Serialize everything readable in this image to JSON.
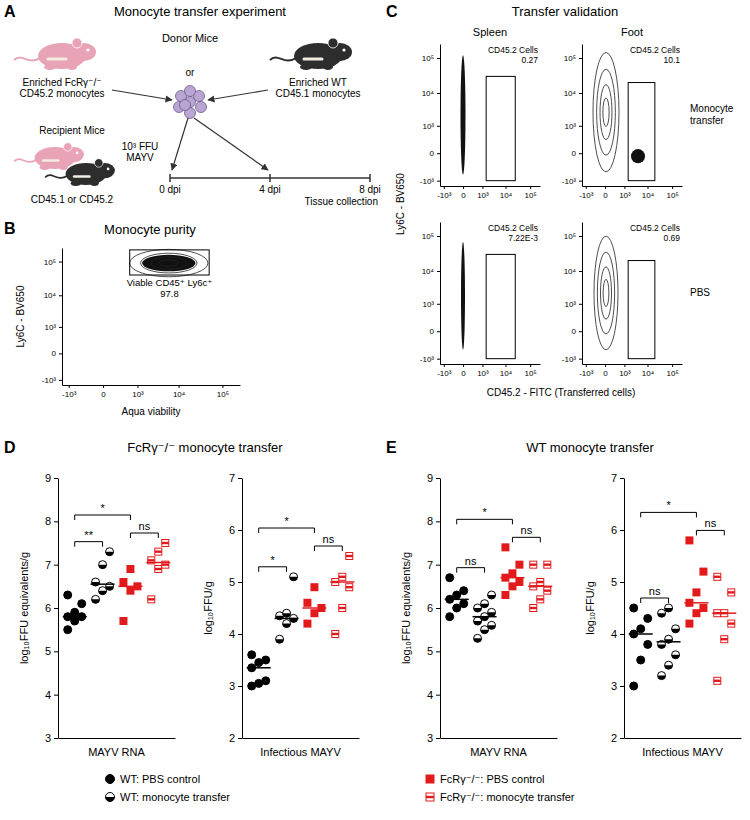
{
  "panels": {
    "A": {
      "letter": "A",
      "title": "Monocyte transfer experiment",
      "donor": "Donor Mice",
      "donor_fcr": [
        "Enriched FcRγ⁻/⁻",
        "CD45.2 monocytes"
      ],
      "donor_wt": [
        "Enriched WT",
        "CD45.1 monocytes"
      ],
      "or": "or",
      "recipient": "Recipient Mice",
      "recipient_type": "CD45.1 or CD45.2",
      "inoculum": [
        "10³ FFU",
        "MAYV"
      ],
      "timeline": [
        "0 dpi",
        "4 dpi",
        "8 dpi"
      ],
      "collection": "Tissue collection"
    },
    "B": {
      "letter": "B",
      "title": "Monocyte purity"
    },
    "C": {
      "letter": "C",
      "title": "Transfer validation",
      "columns": [
        "Spleen",
        "Foot"
      ],
      "rows": [
        "Monocyte transfer",
        "PBS"
      ],
      "x_label": "CD45.2 - FITC (Transferred cells)",
      "y_label": "Ly6C - BV650"
    },
    "D": {
      "letter": "D",
      "title": "FcRγ⁻/⁻ monocyte transfer"
    },
    "E": {
      "letter": "E",
      "title": "WT monocyte transfer"
    }
  },
  "chart_data": [
    {
      "type": "flow",
      "x_label": "Aqua viability",
      "y_label": "Ly6C - BV650",
      "log": true,
      "xlim": [
        -1500,
        250000
      ],
      "ylim": [
        -1500,
        250000
      ],
      "xticks": [
        {
          "value": -1000,
          "label": "-10³"
        },
        0,
        {
          "value": 1000,
          "label": "10³"
        },
        {
          "value": 10000,
          "label": "10⁴"
        },
        {
          "value": 100000,
          "label": "10⁵"
        }
      ],
      "yticks": [
        {
          "value": -1000,
          "label": "-10³"
        },
        0,
        {
          "value": 1000,
          "label": "10³"
        },
        {
          "value": 10000,
          "label": "10⁴"
        },
        {
          "value": 100000,
          "label": "10⁵"
        }
      ],
      "gates": [
        {
          "label": "Viable CD45⁺ Ly6c⁺",
          "value": 97.8,
          "x": [
            600,
            50000
          ],
          "y": [
            40000,
            220000
          ]
        }
      ]
    },
    {
      "type": "flow",
      "log": true,
      "xlim": [
        -1500,
        250000
      ],
      "ylim": [
        -1500,
        250000
      ],
      "xticks": [
        {
          "value": -1000,
          "label": "-10³"
        },
        0,
        {
          "value": 1000,
          "label": "10³"
        },
        {
          "value": 10000,
          "label": "10⁴"
        },
        {
          "value": 100000,
          "label": "10⁵"
        }
      ],
      "yticks": [
        {
          "value": -1000,
          "label": "-10³"
        },
        0,
        {
          "value": 1000,
          "label": "10³"
        },
        {
          "value": 10000,
          "label": "10⁴"
        },
        {
          "value": 100000,
          "label": "10⁵"
        }
      ],
      "gates": [
        {
          "label": "CD45.2 Cells",
          "value": 0.27,
          "x": [
            1500,
            25000
          ],
          "y": [
            -1000,
            30000
          ]
        }
      ]
    },
    {
      "type": "flow",
      "log": true,
      "xlim": [
        -1500,
        250000
      ],
      "ylim": [
        -1500,
        250000
      ],
      "xticks": [
        {
          "value": -1000,
          "label": "-10³"
        },
        0,
        {
          "value": 1000,
          "label": "10³"
        },
        {
          "value": 10000,
          "label": "10⁴"
        },
        {
          "value": 100000,
          "label": "10⁵"
        }
      ],
      "yticks": [
        {
          "value": -1000,
          "label": "-10³"
        },
        0,
        {
          "value": 1000,
          "label": "10³"
        },
        {
          "value": 10000,
          "label": "10⁴"
        },
        {
          "value": 100000,
          "label": "10⁵"
        }
      ],
      "gates": [
        {
          "label": "CD45.2 Cells",
          "value": 10.1,
          "x": [
            1500,
            20000
          ],
          "y": [
            -1000,
            20000
          ]
        }
      ]
    },
    {
      "type": "flow",
      "log": true,
      "xlim": [
        -1500,
        250000
      ],
      "ylim": [
        -1500,
        250000
      ],
      "xticks": [
        {
          "value": -1000,
          "label": "-10³"
        },
        0,
        {
          "value": 1000,
          "label": "10³"
        },
        {
          "value": 10000,
          "label": "10⁴"
        },
        {
          "value": 100000,
          "label": "10⁵"
        }
      ],
      "yticks": [
        {
          "value": -1000,
          "label": "-10³"
        },
        0,
        {
          "value": 1000,
          "label": "10³"
        },
        {
          "value": 10000,
          "label": "10⁴"
        },
        {
          "value": 100000,
          "label": "10⁵"
        }
      ],
      "gates": [
        {
          "label": "CD45.2 Cells",
          "value": 0.00722,
          "value_label": "7.22E-3",
          "x": [
            1500,
            25000
          ],
          "y": [
            -1000,
            30000
          ]
        }
      ]
    },
    {
      "type": "flow",
      "log": true,
      "xlim": [
        -1500,
        250000
      ],
      "ylim": [
        -1500,
        250000
      ],
      "xticks": [
        {
          "value": -1000,
          "label": "-10³"
        },
        0,
        {
          "value": 1000,
          "label": "10³"
        },
        {
          "value": 10000,
          "label": "10⁴"
        },
        {
          "value": 100000,
          "label": "10⁵"
        }
      ],
      "yticks": [
        {
          "value": -1000,
          "label": "-10³"
        },
        0,
        {
          "value": 1000,
          "label": "10³"
        },
        {
          "value": 10000,
          "label": "10⁴"
        },
        {
          "value": 100000,
          "label": "10⁵"
        }
      ],
      "gates": [
        {
          "label": "CD45.2 Cells",
          "value": 0.69,
          "x": [
            1500,
            20000
          ],
          "y": [
            -1000,
            20000
          ]
        }
      ]
    },
    {
      "type": "scatter",
      "x_label": "MAYV RNA",
      "y_label": "log₁₀FFU equivalents/g",
      "ylim": [
        3,
        9
      ],
      "yticks": [
        3,
        4,
        5,
        6,
        7,
        8,
        9
      ],
      "tick_labels": "y",
      "legend": "bottom",
      "series": [
        {
          "name": "WT: PBS control",
          "color": "#000000",
          "marker": "circle",
          "values": [
            5.5,
            5.7,
            5.8,
            5.8,
            5.9,
            6.1,
            6.3
          ],
          "median": 5.8
        },
        {
          "name": "WT: monocyte transfer",
          "color": "#000000",
          "marker": "half-circle",
          "values": [
            6.2,
            6.4,
            6.5,
            6.6,
            7.0,
            7.3
          ],
          "median": 6.55
        },
        {
          "name": "FcRγ⁻/⁻: PBS control",
          "color": "#e31a1c",
          "marker": "square",
          "values": [
            5.7,
            6.4,
            6.5,
            6.6,
            6.9
          ],
          "median": 6.5
        },
        {
          "name": "FcRγ⁻/⁻: monocyte transfer",
          "color": "#e31a1c",
          "marker": "half-square",
          "values": [
            6.2,
            6.9,
            7.0,
            7.1,
            7.3,
            7.5
          ],
          "median": 7.05
        }
      ],
      "annotations": [
        {
          "groups": [
            0,
            1
          ],
          "text": "**"
        },
        {
          "groups": [
            2,
            3
          ],
          "text": "ns"
        },
        {
          "groups": [
            0,
            2
          ],
          "text": "*"
        }
      ]
    },
    {
      "type": "scatter",
      "x_label": "Infectious MAYV",
      "y_label": "log₁₀FFU/g",
      "ylim": [
        2,
        7
      ],
      "yticks": [
        2,
        3,
        4,
        5,
        6,
        7
      ],
      "tick_labels": "y",
      "series": [
        {
          "name": "WT: PBS control",
          "color": "#000000",
          "marker": "circle",
          "values": [
            3.0,
            3.05,
            3.1,
            3.35,
            3.45,
            3.5,
            3.6
          ],
          "median": 3.35
        },
        {
          "name": "WT: monocyte transfer",
          "color": "#000000",
          "marker": "half-circle",
          "values": [
            3.9,
            4.2,
            4.3,
            4.35,
            4.4,
            5.1
          ],
          "median": 4.3
        },
        {
          "name": "FcRγ⁻/⁻: PBS control",
          "color": "#e31a1c",
          "marker": "square",
          "values": [
            4.2,
            4.4,
            4.5,
            4.6,
            4.9
          ],
          "median": 4.5
        },
        {
          "name": "FcRγ⁻/⁻: monocyte transfer",
          "color": "#e31a1c",
          "marker": "half-square",
          "values": [
            4.0,
            4.5,
            4.9,
            5.0,
            5.1,
            5.5
          ],
          "median": 5.0
        }
      ],
      "annotations": [
        {
          "groups": [
            0,
            1
          ],
          "text": "*"
        },
        {
          "groups": [
            2,
            3
          ],
          "text": "ns"
        },
        {
          "groups": [
            0,
            2
          ],
          "text": "*"
        }
      ]
    },
    {
      "type": "scatter",
      "x_label": "MAYV RNA",
      "y_label": "log₁₀FFU equivalents/g",
      "ylim": [
        3,
        9
      ],
      "yticks": [
        3,
        4,
        5,
        6,
        7,
        8,
        9
      ],
      "tick_labels": "y",
      "series": [
        {
          "name": "WT: PBS control",
          "color": "#000000",
          "marker": "circle",
          "values": [
            5.8,
            6.0,
            6.1,
            6.2,
            6.3,
            6.4,
            6.7
          ],
          "median": 6.2
        },
        {
          "name": "WT: monocyte transfer",
          "color": "#000000",
          "marker": "half-circle",
          "values": [
            5.3,
            5.5,
            5.6,
            5.7,
            5.8,
            5.9,
            6.0,
            6.1,
            6.3
          ],
          "median": 5.8
        },
        {
          "name": "FcRγ⁻/⁻: PBS control",
          "color": "#e31a1c",
          "marker": "square",
          "values": [
            6.3,
            6.5,
            6.6,
            6.7,
            6.8,
            7.0,
            7.4
          ],
          "median": 6.7
        },
        {
          "name": "FcRγ⁻/⁻: monocyte transfer",
          "color": "#e31a1c",
          "marker": "half-square",
          "values": [
            6.0,
            6.2,
            6.4,
            6.5,
            6.6,
            7.0,
            7.0
          ],
          "median": 6.5
        }
      ],
      "annotations": [
        {
          "groups": [
            0,
            1
          ],
          "text": "ns"
        },
        {
          "groups": [
            2,
            3
          ],
          "text": "ns"
        },
        {
          "groups": [
            0,
            2
          ],
          "text": "*"
        }
      ]
    },
    {
      "type": "scatter",
      "x_label": "Infectious MAYV",
      "y_label": "log₁₀FFU/g",
      "ylim": [
        2,
        7
      ],
      "yticks": [
        2,
        3,
        4,
        5,
        6,
        7
      ],
      "tick_labels": "y",
      "series": [
        {
          "name": "WT: PBS control",
          "color": "#000000",
          "marker": "circle",
          "values": [
            3.0,
            3.5,
            3.8,
            4.0,
            4.1,
            4.3,
            4.5
          ],
          "median": 4.0
        },
        {
          "name": "WT: monocyte transfer",
          "color": "#000000",
          "marker": "half-circle",
          "values": [
            3.2,
            3.4,
            3.6,
            3.8,
            3.9,
            4.1,
            4.4,
            4.5
          ],
          "median": 3.85
        },
        {
          "name": "FcRγ⁻/⁻: PBS control",
          "color": "#e31a1c",
          "marker": "square",
          "values": [
            4.2,
            4.4,
            4.5,
            4.6,
            4.8,
            5.2,
            5.8
          ],
          "median": 4.6
        },
        {
          "name": "FcRγ⁻/⁻: monocyte transfer",
          "color": "#e31a1c",
          "marker": "half-square",
          "values": [
            3.1,
            3.9,
            4.2,
            4.4,
            4.4,
            4.8,
            5.1
          ],
          "median": 4.4
        }
      ],
      "annotations": [
        {
          "groups": [
            0,
            1
          ],
          "text": "ns"
        },
        {
          "groups": [
            2,
            3
          ],
          "text": "ns"
        },
        {
          "groups": [
            0,
            2
          ],
          "text": "*"
        }
      ]
    }
  ]
}
